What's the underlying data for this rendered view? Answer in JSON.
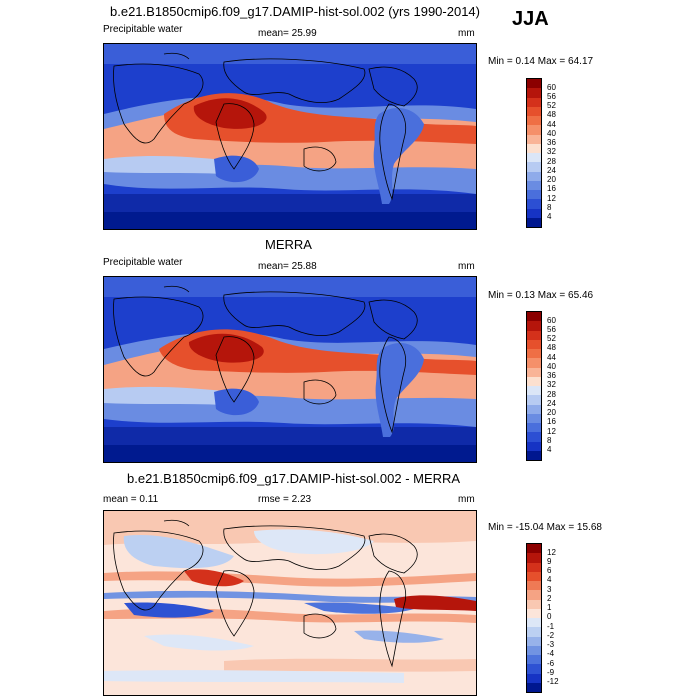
{
  "season": "JJA",
  "panels": [
    {
      "id": "model",
      "title": "b.e21.B1850cmip6.f09_g17.DAMIP-hist-sol.002 (yrs 1990-2014)",
      "left_label": "Precipitable water",
      "center_label": "mean=  25.99",
      "units": "mm",
      "minmax": "Min =  0.14 Max =  64.17",
      "colorbar": {
        "levels": [
          "60",
          "56",
          "52",
          "48",
          "44",
          "40",
          "36",
          "32",
          "28",
          "24",
          "20",
          "16",
          "12",
          "8",
          "4"
        ],
        "colors": [
          "#8b0000",
          "#b5150b",
          "#d4311b",
          "#e6502c",
          "#ef6f45",
          "#f5906a",
          "#f9b497",
          "#fce0cf",
          "#dbe6f7",
          "#b7cbf2",
          "#8fabea",
          "#6a8ce2",
          "#4a6fdc",
          "#2c4fd3",
          "#1633c4",
          "#00178f"
        ]
      }
    },
    {
      "id": "obs",
      "title": "MERRA",
      "left_label": "Precipitable water",
      "center_label": "mean=  25.88",
      "units": "mm",
      "minmax": "Min =  0.13 Max =  65.46",
      "colorbar": {
        "levels": [
          "60",
          "56",
          "52",
          "48",
          "44",
          "40",
          "36",
          "32",
          "28",
          "24",
          "20",
          "16",
          "12",
          "8",
          "4"
        ],
        "colors": [
          "#8b0000",
          "#b5150b",
          "#d4311b",
          "#e6502c",
          "#ef6f45",
          "#f5906a",
          "#f9b497",
          "#fce0cf",
          "#dbe6f7",
          "#b7cbf2",
          "#8fabea",
          "#6a8ce2",
          "#4a6fdc",
          "#2c4fd3",
          "#1633c4",
          "#00178f"
        ]
      }
    },
    {
      "id": "diff",
      "title": "b.e21.B1850cmip6.f09_g17.DAMIP-hist-sol.002 - MERRA",
      "left_label": "mean =   0.11",
      "center_label": "rmse =   2.23",
      "units": "mm",
      "minmax": "Min = -15.04 Max =  15.68",
      "colorbar": {
        "levels": [
          "12",
          "9",
          "6",
          "4",
          "3",
          "2",
          "1",
          "0",
          "-1",
          "-2",
          "-3",
          "-4",
          "-6",
          "-9",
          "-12"
        ],
        "colors": [
          "#8b0000",
          "#b5150b",
          "#d4311b",
          "#e6502c",
          "#ef7a55",
          "#f5a384",
          "#f9c8b2",
          "#fce5da",
          "#dde7f7",
          "#bcd0f2",
          "#97b2ea",
          "#7193e2",
          "#4d73dc",
          "#2e52d3",
          "#1633c4",
          "#00178f"
        ]
      }
    }
  ]
}
